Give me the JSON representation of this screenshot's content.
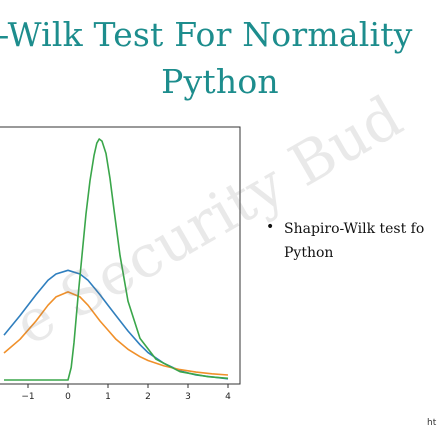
{
  "slide": {
    "title_line1": "o-Wilk Test For Normality",
    "title_line2": "Python",
    "bullet": {
      "symbol": "•",
      "line1": "Shapiro-Wilk test fo",
      "line2": "Python"
    },
    "watermark": "e Security Bud",
    "footer": "ht",
    "colors": {
      "title": "#1d8d8d",
      "series_blue": "#2f7fbf",
      "series_orange": "#f0902a",
      "series_green": "#3aa64a"
    }
  },
  "chart_data": {
    "type": "line",
    "x_ticks": [
      "−1",
      "0",
      "1",
      "2",
      "3",
      "4"
    ],
    "xlim": [
      -1.6,
      4
    ],
    "ylim": [
      0,
      0.6
    ],
    "grid": false,
    "series": [
      {
        "color": "#2f7fbf",
        "x": [
          -1.6,
          -1.2,
          -0.8,
          -0.5,
          -0.3,
          0,
          0.3,
          0.5,
          0.8,
          1.0,
          1.2,
          1.5,
          1.8,
          2.0,
          2.4,
          2.8,
          3.2,
          4.0
        ],
        "y": [
          0.108,
          0.155,
          0.205,
          0.24,
          0.255,
          0.264,
          0.255,
          0.24,
          0.205,
          0.18,
          0.155,
          0.118,
          0.085,
          0.066,
          0.04,
          0.022,
          0.012,
          0.003
        ]
      },
      {
        "color": "#f0902a",
        "x": [
          -1.6,
          -1.2,
          -0.8,
          -0.5,
          -0.3,
          0,
          0.3,
          0.5,
          0.8,
          1.0,
          1.2,
          1.5,
          1.8,
          2.0,
          2.4,
          2.8,
          3.2,
          3.6,
          4.0
        ],
        "y": [
          0.065,
          0.098,
          0.142,
          0.18,
          0.2,
          0.212,
          0.2,
          0.18,
          0.142,
          0.12,
          0.098,
          0.074,
          0.056,
          0.047,
          0.034,
          0.025,
          0.019,
          0.015,
          0.012
        ]
      },
      {
        "color": "#3aa64a",
        "x": [
          -1.6,
          0,
          0.08,
          0.15,
          0.25,
          0.35,
          0.45,
          0.55,
          0.65,
          0.72,
          0.78,
          0.85,
          0.95,
          1.05,
          1.15,
          1.3,
          1.5,
          1.8,
          2.2,
          2.8,
          3.5,
          4.0
        ],
        "y": [
          0.0,
          0.0,
          0.03,
          0.09,
          0.2,
          0.3,
          0.4,
          0.48,
          0.54,
          0.57,
          0.58,
          0.575,
          0.545,
          0.485,
          0.41,
          0.3,
          0.19,
          0.1,
          0.05,
          0.02,
          0.008,
          0.004
        ]
      }
    ]
  }
}
